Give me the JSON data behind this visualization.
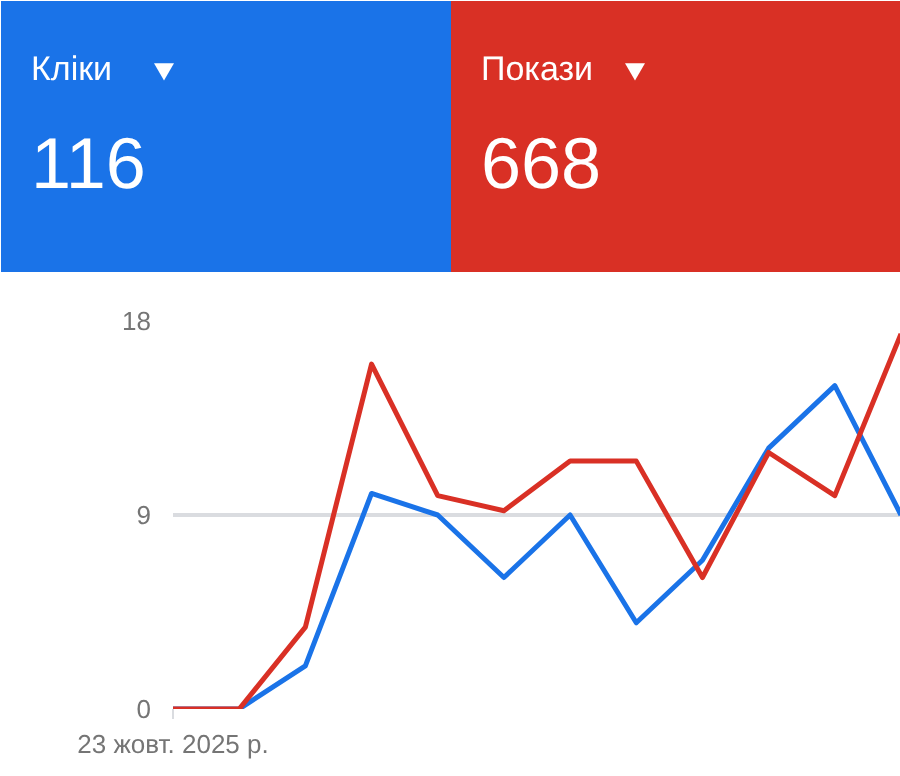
{
  "chart_data": [
    {
      "type": "other",
      "categories": [
        "Кліки",
        "Покази"
      ],
      "values": [
        116,
        668
      ],
      "data_labels": true,
      "colors": [
        "#1a73e8",
        "#d93025"
      ]
    },
    {
      "type": "line",
      "categories": [
        "23 жовт. 2025 р.",
        null,
        null,
        null,
        null,
        null,
        null,
        null,
        null,
        null,
        null,
        null
      ],
      "ylim": [
        0,
        18
      ],
      "yticks": [
        0,
        9,
        18
      ],
      "grid": "y",
      "line_style": "solid",
      "series": [
        {
          "color": "#1a73e8",
          "values": [
            0,
            0,
            2.0,
            10.0,
            9,
            6.1,
            9,
            4.0,
            6.9,
            12.1,
            15.0,
            9
          ]
        },
        {
          "color": "#d93025",
          "values": [
            0,
            0,
            3.8,
            16.0,
            9.9,
            9.2,
            11.5,
            11.5,
            6.1,
            11.9,
            9.9,
            17.4
          ]
        }
      ]
    }
  ]
}
